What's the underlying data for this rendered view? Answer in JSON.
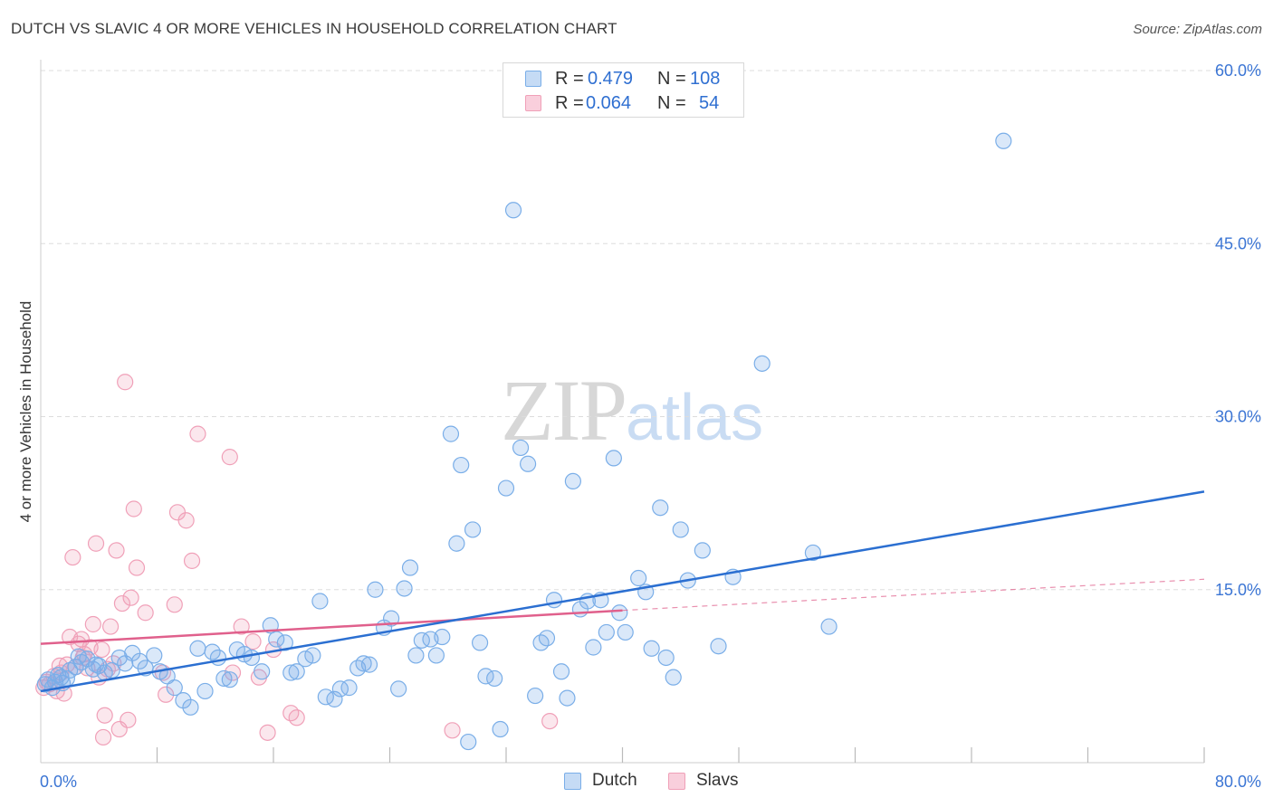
{
  "title": "DUTCH VS SLAVIC 4 OR MORE VEHICLES IN HOUSEHOLD CORRELATION CHART",
  "source": "Source: ZipAtlas.com",
  "watermark": {
    "zip": "ZIP",
    "atlas": "atlas"
  },
  "colors": {
    "dutch": "#7aaee8",
    "dutch_line": "#2b6fd1",
    "slavs": "#f0a0b8",
    "slavs_line": "#e0608c",
    "tick_label": "#3b75d4",
    "grid": "#dddddd"
  },
  "legend": {
    "dutch": {
      "r_label": "R =",
      "r_value": "0.479",
      "n_label": "N =",
      "n_value": "108"
    },
    "slavs": {
      "r_label": "R =",
      "r_value": "0.064",
      "n_label": "N =",
      "n_value": "54"
    }
  },
  "bottom_legend": {
    "dutch": "Dutch",
    "slavs": "Slavs"
  },
  "chart_data": {
    "type": "scatter",
    "title": "DUTCH VS SLAVIC 4 OR MORE VEHICLES IN HOUSEHOLD CORRELATION CHART",
    "xlabel": "",
    "ylabel": "4 or more Vehicles in Household",
    "xlim": [
      0,
      80
    ],
    "ylim": [
      0,
      60
    ],
    "x_tick_labels": [
      {
        "value": 0,
        "label": "0.0%"
      },
      {
        "value": 80,
        "label": "80.0%"
      }
    ],
    "y_tick_labels": [
      {
        "value": 15,
        "label": "15.0%"
      },
      {
        "value": 30,
        "label": "30.0%"
      },
      {
        "value": 45,
        "label": "45.0%"
      },
      {
        "value": 60,
        "label": "60.0%"
      }
    ],
    "grid": true,
    "series": [
      {
        "name": "Dutch",
        "trend": {
          "x": [
            0,
            80
          ],
          "y": [
            6.2,
            23.5
          ]
        },
        "points": [
          [
            0.3,
            6.8
          ],
          [
            0.5,
            7.2
          ],
          [
            0.8,
            6.5
          ],
          [
            1.0,
            7.0
          ],
          [
            1.2,
            7.6
          ],
          [
            1.5,
            6.9
          ],
          [
            1.8,
            7.3
          ],
          [
            2.0,
            8.0
          ],
          [
            2.4,
            8.3
          ],
          [
            2.8,
            8.7
          ],
          [
            3.2,
            9.0
          ],
          [
            3.6,
            8.1
          ],
          [
            4.0,
            8.4
          ],
          [
            4.4,
            7.8
          ],
          [
            4.9,
            8.0
          ],
          [
            5.4,
            9.1
          ],
          [
            5.8,
            8.6
          ],
          [
            6.3,
            9.5
          ],
          [
            6.8,
            8.8
          ],
          [
            7.2,
            8.2
          ],
          [
            7.8,
            9.3
          ],
          [
            8.2,
            7.9
          ],
          [
            8.7,
            7.5
          ],
          [
            9.2,
            6.5
          ],
          [
            9.8,
            5.4
          ],
          [
            10.3,
            4.8
          ],
          [
            10.8,
            9.9
          ],
          [
            11.3,
            6.2
          ],
          [
            11.8,
            9.6
          ],
          [
            12.2,
            9.1
          ],
          [
            12.6,
            7.3
          ],
          [
            13.0,
            7.2
          ],
          [
            13.5,
            9.8
          ],
          [
            14.0,
            9.4
          ],
          [
            14.5,
            9.1
          ],
          [
            15.2,
            7.9
          ],
          [
            15.8,
            11.9
          ],
          [
            16.2,
            10.7
          ],
          [
            16.8,
            10.4
          ],
          [
            17.2,
            7.8
          ],
          [
            17.6,
            7.9
          ],
          [
            18.2,
            9.0
          ],
          [
            18.7,
            9.3
          ],
          [
            19.2,
            14.0
          ],
          [
            19.6,
            5.7
          ],
          [
            20.2,
            5.5
          ],
          [
            20.6,
            6.4
          ],
          [
            21.2,
            6.5
          ],
          [
            21.8,
            8.2
          ],
          [
            22.2,
            8.6
          ],
          [
            22.6,
            8.5
          ],
          [
            23.0,
            15.0
          ],
          [
            23.6,
            11.7
          ],
          [
            24.1,
            12.5
          ],
          [
            24.6,
            6.4
          ],
          [
            25.0,
            15.1
          ],
          [
            25.4,
            16.9
          ],
          [
            25.8,
            9.3
          ],
          [
            26.2,
            10.6
          ],
          [
            26.8,
            10.7
          ],
          [
            27.2,
            9.3
          ],
          [
            27.6,
            10.9
          ],
          [
            28.2,
            28.5
          ],
          [
            28.6,
            19.0
          ],
          [
            28.9,
            25.8
          ],
          [
            29.4,
            1.8
          ],
          [
            29.7,
            20.2
          ],
          [
            30.2,
            10.4
          ],
          [
            30.6,
            7.5
          ],
          [
            31.2,
            7.3
          ],
          [
            31.6,
            2.9
          ],
          [
            32.0,
            23.8
          ],
          [
            32.5,
            47.9
          ],
          [
            33.0,
            27.3
          ],
          [
            33.5,
            25.9
          ],
          [
            34.0,
            5.8
          ],
          [
            34.4,
            10.4
          ],
          [
            34.8,
            10.8
          ],
          [
            35.3,
            14.1
          ],
          [
            35.8,
            7.9
          ],
          [
            36.2,
            5.6
          ],
          [
            36.6,
            24.4
          ],
          [
            37.1,
            13.3
          ],
          [
            37.6,
            14.0
          ],
          [
            38.0,
            10.0
          ],
          [
            38.5,
            14.1
          ],
          [
            38.9,
            11.3
          ],
          [
            39.4,
            26.4
          ],
          [
            39.8,
            13.0
          ],
          [
            40.2,
            11.3
          ],
          [
            41.1,
            16.0
          ],
          [
            41.6,
            14.8
          ],
          [
            42.0,
            9.9
          ],
          [
            42.6,
            22.1
          ],
          [
            43.0,
            9.1
          ],
          [
            43.5,
            7.4
          ],
          [
            44.0,
            20.2
          ],
          [
            44.5,
            15.8
          ],
          [
            45.5,
            18.4
          ],
          [
            46.6,
            10.1
          ],
          [
            47.6,
            16.1
          ],
          [
            49.6,
            34.6
          ],
          [
            53.1,
            18.2
          ],
          [
            54.2,
            11.8
          ],
          [
            66.2,
            53.9
          ],
          [
            1.4,
            7.4
          ],
          [
            2.6,
            9.2
          ],
          [
            3.8,
            8.5
          ]
        ]
      },
      {
        "name": "Slavs",
        "trend": {
          "x": [
            0,
            40
          ],
          "y": [
            10.3,
            13.2
          ]
        },
        "trend_dashed": {
          "x": [
            40,
            80
          ],
          "y": [
            13.2,
            15.9
          ]
        },
        "points": [
          [
            0.2,
            6.5
          ],
          [
            0.4,
            7.0
          ],
          [
            0.6,
            6.8
          ],
          [
            0.9,
            7.5
          ],
          [
            1.1,
            6.2
          ],
          [
            1.4,
            7.8
          ],
          [
            1.6,
            6.0
          ],
          [
            1.8,
            8.5
          ],
          [
            2.0,
            10.9
          ],
          [
            2.2,
            17.8
          ],
          [
            2.4,
            8.3
          ],
          [
            2.6,
            10.3
          ],
          [
            2.8,
            10.7
          ],
          [
            3.0,
            9.4
          ],
          [
            3.2,
            8.2
          ],
          [
            3.4,
            10.0
          ],
          [
            3.6,
            12.0
          ],
          [
            3.8,
            19.0
          ],
          [
            4.0,
            7.4
          ],
          [
            4.2,
            9.8
          ],
          [
            4.4,
            4.1
          ],
          [
            4.6,
            8.1
          ],
          [
            4.8,
            11.8
          ],
          [
            5.0,
            8.6
          ],
          [
            5.2,
            18.4
          ],
          [
            5.4,
            2.9
          ],
          [
            5.6,
            13.8
          ],
          [
            5.8,
            33.0
          ],
          [
            6.0,
            3.7
          ],
          [
            6.2,
            14.3
          ],
          [
            6.4,
            22.0
          ],
          [
            6.6,
            16.9
          ],
          [
            7.2,
            13.0
          ],
          [
            8.4,
            7.8
          ],
          [
            8.6,
            5.9
          ],
          [
            9.2,
            13.7
          ],
          [
            9.4,
            21.7
          ],
          [
            10.0,
            21.0
          ],
          [
            10.4,
            17.5
          ],
          [
            10.8,
            28.5
          ],
          [
            13.0,
            26.5
          ],
          [
            13.2,
            7.8
          ],
          [
            13.8,
            11.8
          ],
          [
            14.6,
            10.5
          ],
          [
            15.0,
            7.4
          ],
          [
            15.6,
            2.6
          ],
          [
            16.0,
            9.8
          ],
          [
            17.2,
            4.3
          ],
          [
            17.6,
            3.9
          ],
          [
            1.3,
            8.4
          ],
          [
            2.9,
            9.1
          ],
          [
            4.3,
            2.2
          ],
          [
            28.3,
            2.8
          ],
          [
            35.0,
            3.6
          ]
        ]
      }
    ]
  },
  "axis": {
    "ylabel": "4 or more Vehicles in Household",
    "x_min_label": "0.0%",
    "x_max_label": "80.0%"
  }
}
